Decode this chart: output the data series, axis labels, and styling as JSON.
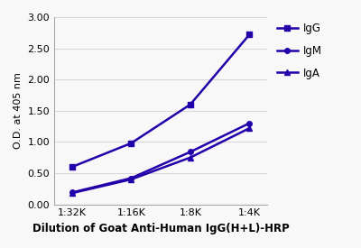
{
  "x_labels": [
    "1:32K",
    "1:16K",
    "1:8K",
    "1:4K"
  ],
  "x_positions": [
    0,
    1,
    2,
    3
  ],
  "IgG": [
    0.6,
    0.98,
    1.6,
    2.72
  ],
  "IgM": [
    0.19,
    0.42,
    0.84,
    1.3
  ],
  "IgA": [
    0.18,
    0.4,
    0.75,
    1.22
  ],
  "purple": "#2200aa",
  "ylabel": "O.D. at 405 nm",
  "xlabel": "Dilution of Goat Anti-Human IgG(H+L)-HRP",
  "ylim": [
    0.0,
    3.0
  ],
  "yticks": [
    0.0,
    0.5,
    1.0,
    1.5,
    2.0,
    2.5,
    3.0
  ],
  "legend_labels": [
    "IgG",
    "IgM",
    "IgA"
  ],
  "bg_color": "#f0f0f0",
  "grid_color": "#d8d8d8",
  "spine_color": "#aaaaaa"
}
